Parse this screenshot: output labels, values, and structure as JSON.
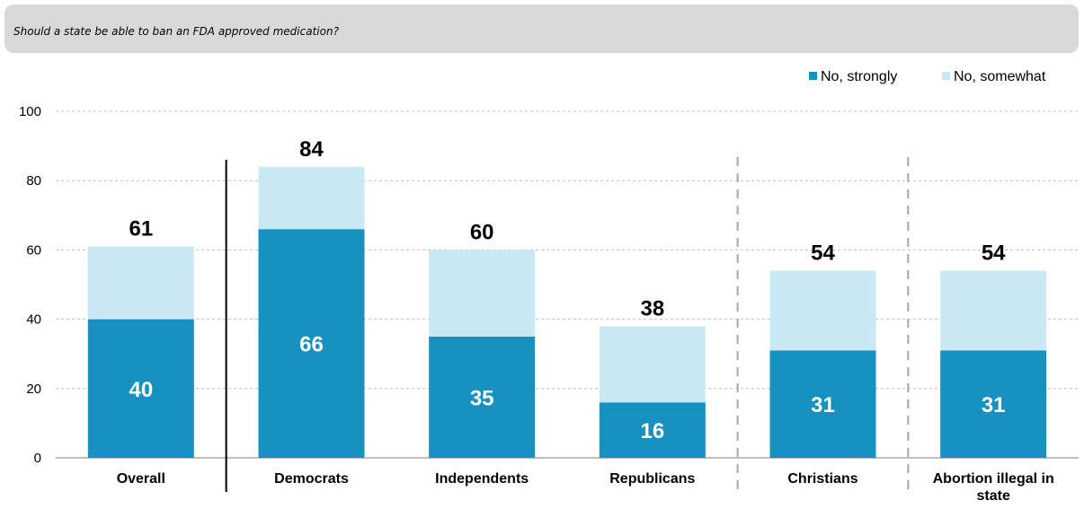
{
  "question": "Should a state be able to ban an FDA approved medication?",
  "colors": {
    "strongly": "#1791c0",
    "somewhat": "#c9eaf5",
    "banner": "#d9d9d9",
    "grid": "#bfbfbf"
  },
  "chart_data": {
    "type": "bar",
    "stacked": true,
    "title": "",
    "xlabel": "",
    "ylabel": "",
    "ylim": [
      0,
      100
    ],
    "yticks": [
      0,
      20,
      40,
      60,
      80,
      100
    ],
    "grid": true,
    "legend_position": "top-right",
    "categories": [
      "Overall",
      "Democrats",
      "Independents",
      "Republicans",
      "Christians",
      [
        "Abortion illegal in",
        "state"
      ]
    ],
    "series": [
      {
        "name": "No, strongly",
        "values": [
          40,
          66,
          35,
          16,
          31,
          31
        ]
      },
      {
        "name": "No, somewhat",
        "values": [
          21,
          18,
          25,
          22,
          23,
          23
        ]
      }
    ],
    "totals": [
      61,
      84,
      60,
      38,
      54,
      54
    ]
  }
}
